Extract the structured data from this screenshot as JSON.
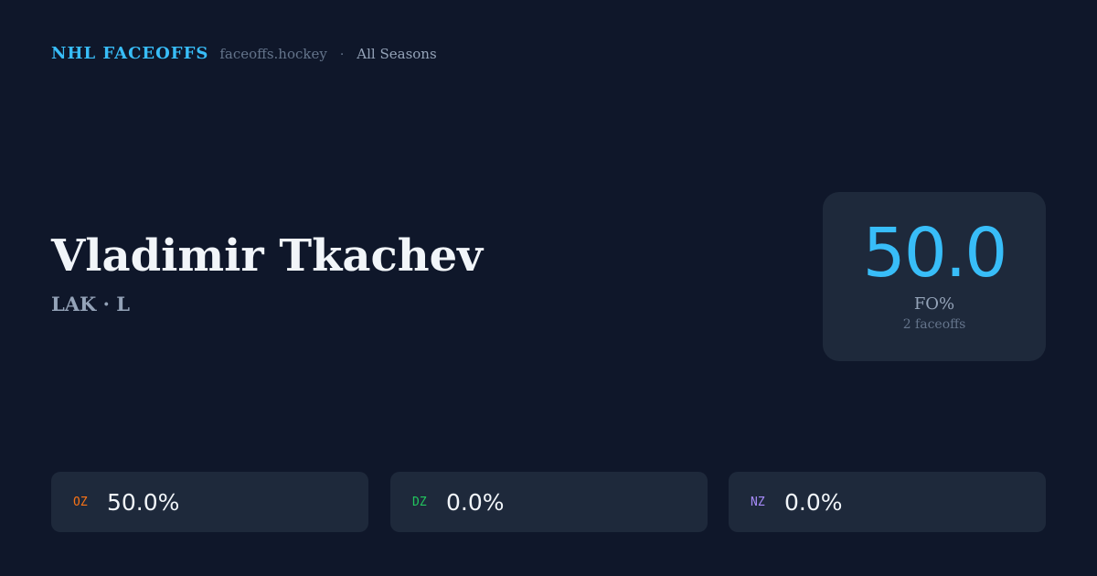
{
  "header": {
    "brand": "NHL FACEOFFS",
    "site": "faceoffs.hockey",
    "separator": "·",
    "season": "All Seasons"
  },
  "player": {
    "name": "Vladimir Tkachev",
    "meta": "LAK · L"
  },
  "summary": {
    "value": "50.0",
    "label": "FO%",
    "faceoffs": "2 faceoffs"
  },
  "zones": [
    {
      "key": "OZ",
      "value": "50.0%",
      "color": "#f97316"
    },
    {
      "key": "DZ",
      "value": "0.0%",
      "color": "#22c55e"
    },
    {
      "key": "NZ",
      "value": "0.0%",
      "color": "#a78bfa"
    }
  ],
  "colors": {
    "background": "#0f172a",
    "card": "#1e293b",
    "accent": "#38bdf8"
  }
}
